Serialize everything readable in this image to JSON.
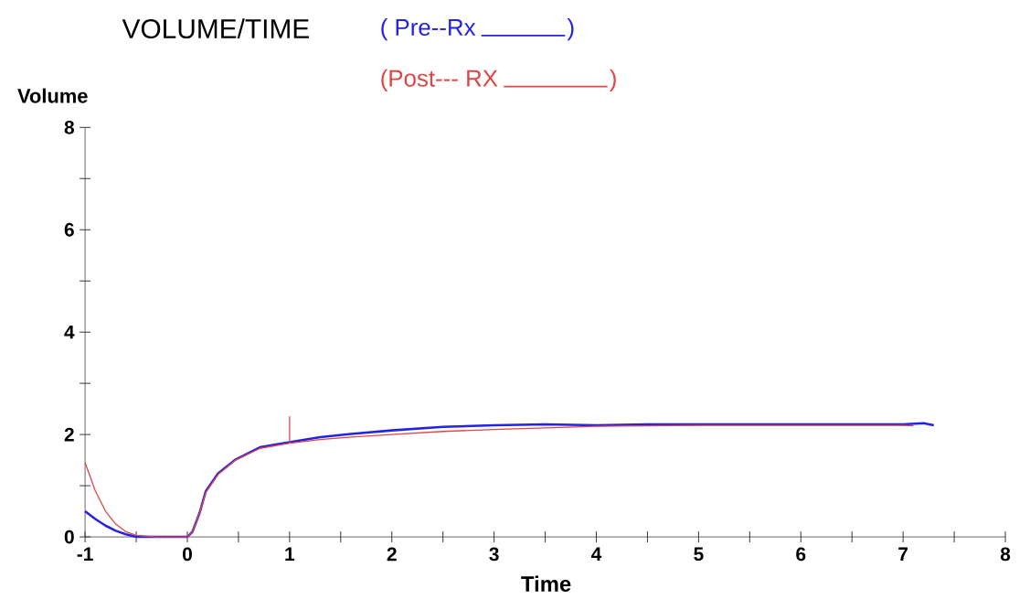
{
  "chart_data": {
    "type": "line",
    "title": "VOLUME/TIME",
    "xlabel": "Time",
    "ylabel": "Volume",
    "xlim": [
      -1,
      8
    ],
    "ylim": [
      0,
      8
    ],
    "xticks": [
      -1,
      {
        "value": -0.5,
        "label": null
      },
      0,
      {
        "value": 0.5,
        "label": null
      },
      1,
      {
        "value": 1.5,
        "label": null
      },
      2,
      {
        "value": 2.5,
        "label": null
      },
      3,
      {
        "value": 3.5,
        "label": null
      },
      4,
      {
        "value": 4.5,
        "label": null
      },
      5,
      {
        "value": 5.5,
        "label": null
      },
      6,
      {
        "value": 6.5,
        "label": null
      },
      7,
      {
        "value": 7.5,
        "label": null
      },
      8
    ],
    "yticks": [
      0,
      {
        "value": 1,
        "label": null
      },
      2,
      {
        "value": 3,
        "label": null
      },
      4,
      {
        "value": 5,
        "label": null
      },
      6,
      {
        "value": 7,
        "label": null
      },
      8
    ],
    "grid": false,
    "legend": "top",
    "marker": "none",
    "line_style": "solid",
    "annotations": [
      ")",
      ")"
    ],
    "series": [
      {
        "name": "( Pre--Rx",
        "color": "#2323e6",
        "x": [
          -1,
          -0.9,
          -0.8,
          -0.7,
          -0.6,
          -0.5,
          0,
          0.05,
          0.12,
          0.18,
          0.3,
          0.47,
          0.71,
          1.0,
          1.3,
          1.6,
          2.0,
          2.5,
          3.0,
          3.5,
          4.0,
          4.5,
          5,
          6,
          7,
          7.2,
          7.3
        ],
        "values": [
          0.5,
          0.35,
          0.22,
          0.12,
          0.05,
          0,
          0,
          0.1,
          0.47,
          0.89,
          1.24,
          1.51,
          1.75,
          1.85,
          1.95,
          2.01,
          2.08,
          2.15,
          2.18,
          2.2,
          2.18,
          2.2,
          2.2,
          2.2,
          2.2,
          2.22,
          2.18
        ]
      },
      {
        "name": "(Post--- RX",
        "color": "#e04545",
        "x": [
          -1,
          -0.9,
          -0.8,
          -0.7,
          -0.6,
          -0.5,
          -0.3,
          0,
          0.05,
          0.12,
          0.18,
          0.3,
          0.47,
          0.71,
          1.0,
          1.0,
          1.0,
          1.3,
          1.6,
          2.0,
          2.5,
          3.0,
          3.5,
          4.0,
          5,
          6,
          7,
          7.1
        ],
        "values": [
          1.45,
          0.9,
          0.5,
          0.25,
          0.1,
          0.03,
          0,
          0,
          0.1,
          0.47,
          0.87,
          1.22,
          1.5,
          1.73,
          1.83,
          2.35,
          1.83,
          1.9,
          1.95,
          2.0,
          2.06,
          2.1,
          2.13,
          2.16,
          2.18,
          2.18,
          2.18,
          2.17
        ]
      }
    ]
  }
}
